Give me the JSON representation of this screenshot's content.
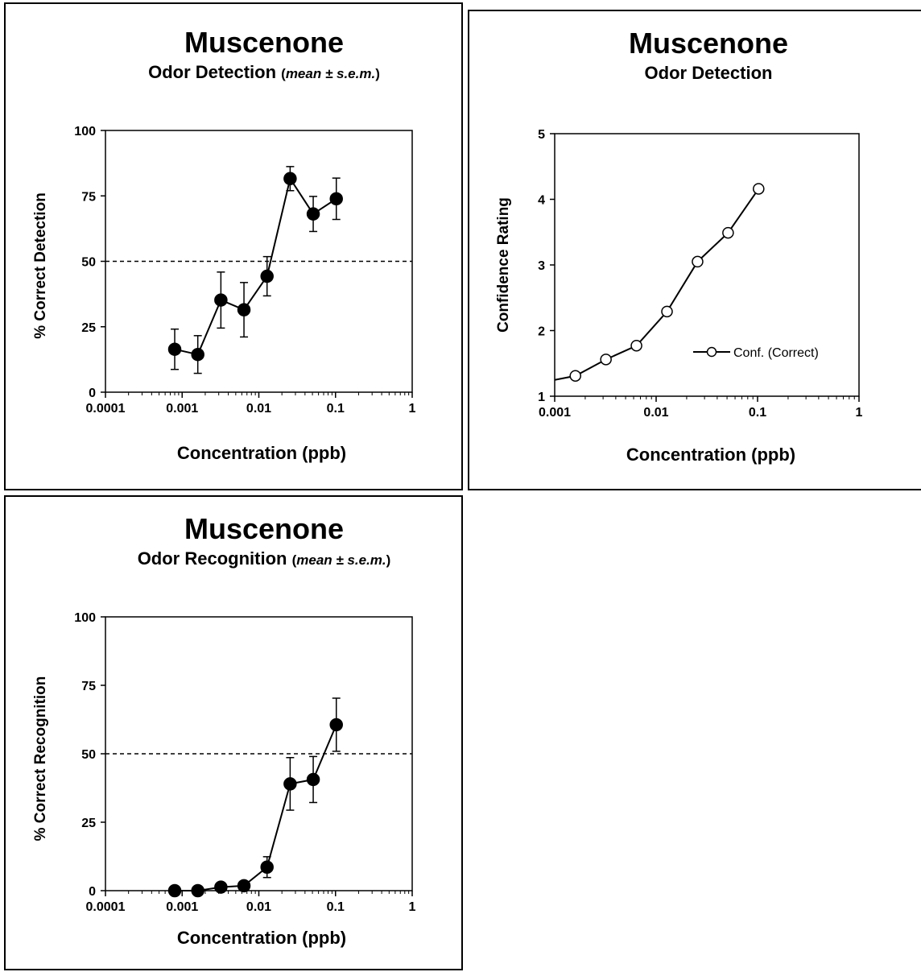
{
  "chart_data": [
    {
      "type": "line",
      "title": "Muscenone",
      "subtitle": "Odor Detection",
      "subtitle_note": "mean ± s.e.m.",
      "xlabel": "Concentration (ppb)",
      "ylabel": "% Correct Detection",
      "x_scale": "log",
      "xlim": [
        0.0001,
        1
      ],
      "ylim": [
        0,
        100
      ],
      "x_ticks": [
        "0.0001",
        "0.001",
        "0.01",
        "0.1",
        "1"
      ],
      "y_ticks": [
        "0",
        "25",
        "50",
        "75",
        "100"
      ],
      "reference_line": {
        "y": 50,
        "style": "dashed"
      },
      "grid": false,
      "series": [
        {
          "marker": "filled-circle",
          "x": [
            0.0008,
            0.0016,
            0.0032,
            0.0064,
            0.0128,
            0.0256,
            0.0512,
            0.1024
          ],
          "y": [
            16.4,
            14.4,
            35.2,
            31.5,
            44.3,
            81.6,
            68.1,
            73.9
          ],
          "err": [
            7.7,
            7.2,
            10.7,
            10.4,
            7.5,
            4.6,
            6.7,
            7.9
          ]
        }
      ]
    },
    {
      "type": "line",
      "title": "Muscenone",
      "subtitle": "Odor Detection",
      "xlabel": "Concentration (ppb)",
      "ylabel": "Confidence Rating",
      "x_scale": "log",
      "xlim": [
        0.001,
        1
      ],
      "ylim": [
        1,
        5
      ],
      "x_ticks": [
        "0.001",
        "0.01",
        "0.1",
        "1"
      ],
      "y_ticks": [
        "1",
        "2",
        "3",
        "4",
        "5"
      ],
      "grid": false,
      "legend": "right-bottom",
      "series": [
        {
          "name": "Conf. (Correct)",
          "marker": "open-circle",
          "x": [
            0.0008,
            0.0016,
            0.0032,
            0.0064,
            0.0128,
            0.0256,
            0.0512,
            0.1024
          ],
          "y": [
            1.22,
            1.31,
            1.56,
            1.77,
            2.29,
            3.05,
            3.49,
            4.16
          ]
        }
      ]
    },
    {
      "type": "line",
      "title": "Muscenone",
      "subtitle": "Odor Recognition",
      "subtitle_note": "mean ± s.e.m.",
      "xlabel": "Concentration (ppb)",
      "ylabel": "% Correct Recognition",
      "x_scale": "log",
      "xlim": [
        0.0001,
        1
      ],
      "ylim": [
        0,
        100
      ],
      "x_ticks": [
        "0.0001",
        "0.001",
        "0.01",
        "0.1",
        "1"
      ],
      "y_ticks": [
        "0",
        "25",
        "50",
        "75",
        "100"
      ],
      "reference_line": {
        "y": 50,
        "style": "dashed"
      },
      "grid": false,
      "series": [
        {
          "marker": "filled-circle",
          "x": [
            0.0008,
            0.0016,
            0.0032,
            0.0064,
            0.0128,
            0.0256,
            0.0512,
            0.1024
          ],
          "y": [
            0.0,
            0.0,
            1.3,
            1.8,
            8.6,
            39.0,
            40.6,
            60.6
          ],
          "err": [
            0,
            0,
            0,
            0,
            3.8,
            9.6,
            8.4,
            9.7
          ]
        }
      ]
    }
  ]
}
